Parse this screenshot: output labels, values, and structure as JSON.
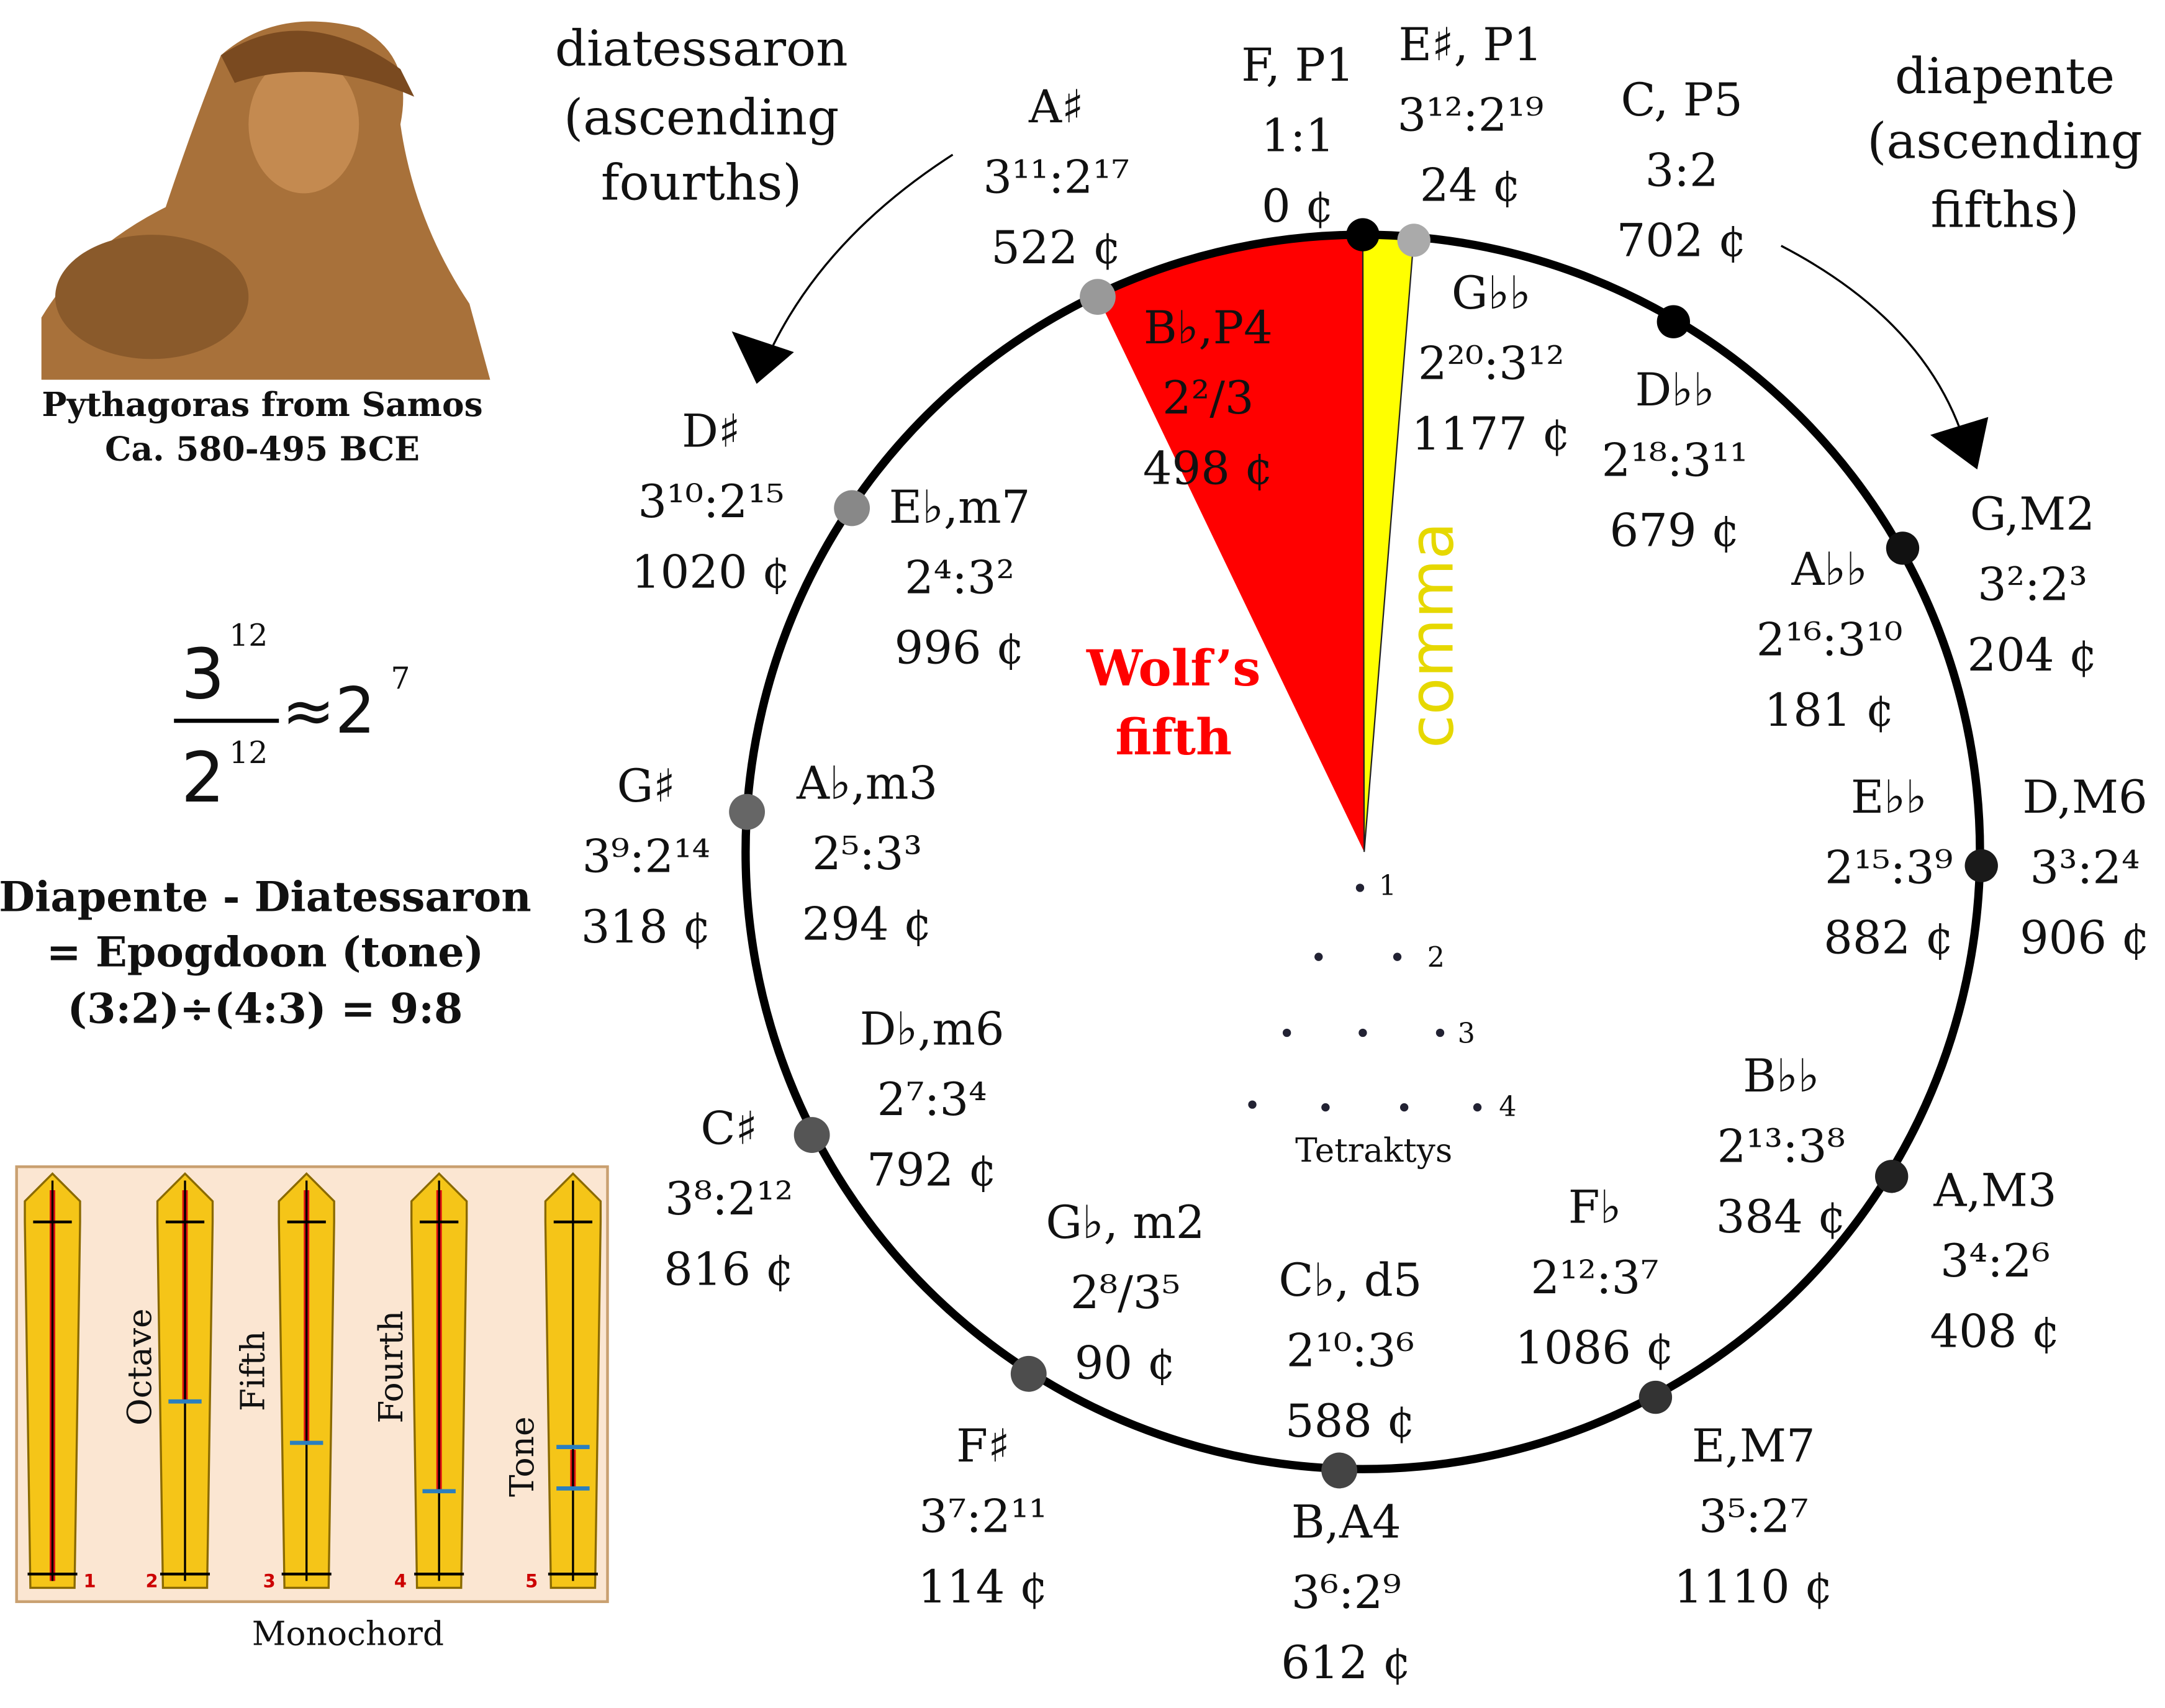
{
  "diatessaron": [
    "diatessaron",
    "(ascending",
    "fourths)"
  ],
  "diapente": [
    "diapente",
    "(ascending",
    "fifths)"
  ],
  "outer_notes": [
    {
      "name": "F, P1",
      "ratio": "1:1",
      "cents": "0 ¢"
    },
    {
      "name": "E♯, P1",
      "ratio": "3¹²:2¹⁹",
      "cents": "24 ¢"
    },
    {
      "name": "C, P5",
      "ratio": "3:2",
      "cents": "702 ¢"
    },
    {
      "name": "G,M2",
      "ratio": "3²:2³",
      "cents": "204 ¢"
    },
    {
      "name": "D,M6",
      "ratio": "3³:2⁴",
      "cents": "906 ¢"
    },
    {
      "name": "A,M3",
      "ratio": "3⁴:2⁶",
      "cents": "408 ¢"
    },
    {
      "name": "E,M7",
      "ratio": "3⁵:2⁷",
      "cents": "1110 ¢"
    },
    {
      "name": "B,A4",
      "ratio": "3⁶:2⁹",
      "cents": "612 ¢"
    },
    {
      "name": "F♯",
      "ratio": "3⁷:2¹¹",
      "cents": "114 ¢"
    },
    {
      "name": "C♯",
      "ratio": "3⁸:2¹²",
      "cents": "816 ¢"
    },
    {
      "name": "G♯",
      "ratio": "3⁹:2¹⁴",
      "cents": "318 ¢"
    },
    {
      "name": "D♯",
      "ratio": "3¹⁰:2¹⁵",
      "cents": "1020 ¢"
    },
    {
      "name": "A♯",
      "ratio": "3¹¹:2¹⁷",
      "cents": "522 ¢"
    }
  ],
  "inner_notes": [
    {
      "name": "B♭,P4",
      "ratio": "2²/3",
      "cents": "498 ¢"
    },
    {
      "name": "G♭♭",
      "ratio": "2²⁰:3¹²",
      "cents": "1177 ¢"
    },
    {
      "name": "D♭♭",
      "ratio": "2¹⁸:3¹¹",
      "cents": "679 ¢"
    },
    {
      "name": "A♭♭",
      "ratio": "2¹⁶:3¹⁰",
      "cents": "181 ¢"
    },
    {
      "name": "E♭♭",
      "ratio": "2¹⁵:3⁹",
      "cents": "882 ¢"
    },
    {
      "name": "B♭♭",
      "ratio": "2¹³:3⁸",
      "cents": "384 ¢"
    },
    {
      "name": "F♭",
      "ratio": "2¹²:3⁷",
      "cents": "1086 ¢"
    },
    {
      "name": "C♭, d5",
      "ratio": "2¹⁰:3⁶",
      "cents": "588 ¢"
    },
    {
      "name": "G♭, m2",
      "ratio": "2⁸/3⁵",
      "cents": "90 ¢"
    },
    {
      "name": "D♭,m6",
      "ratio": "2⁷:3⁴",
      "cents": "792 ¢"
    },
    {
      "name": "A♭,m3",
      "ratio": "2⁵:3³",
      "cents": "294 ¢"
    },
    {
      "name": "E♭,m7",
      "ratio": "2⁴:3²",
      "cents": "996 ¢"
    }
  ],
  "wolf_fifth": [
    "Wolf’s",
    "fifth"
  ],
  "comma": "comma",
  "portrait_caption": [
    "Pythagoras from Samos",
    "Ca. 580-495 BCE"
  ],
  "formula": {
    "numerator": "3",
    "numerator_exp": "12",
    "denominator": "2",
    "denominator_exp": "12",
    "approx": "≈2",
    "approx_exp": "7"
  },
  "epogdoon": [
    "Diapente - Diatessaron",
    "= Epogdoon (tone)",
    "(3:2)÷(4:3) = 9:8"
  ],
  "tetraktys": {
    "numbers": [
      "1",
      "2",
      "3",
      "4"
    ],
    "label": "Tetraktys"
  },
  "monochord": {
    "labels": [
      "Octave",
      "Fifth",
      "Fourth",
      "Tone"
    ],
    "numbers": [
      "1",
      "2",
      "3",
      "4",
      "5"
    ],
    "caption": "Monochord"
  }
}
